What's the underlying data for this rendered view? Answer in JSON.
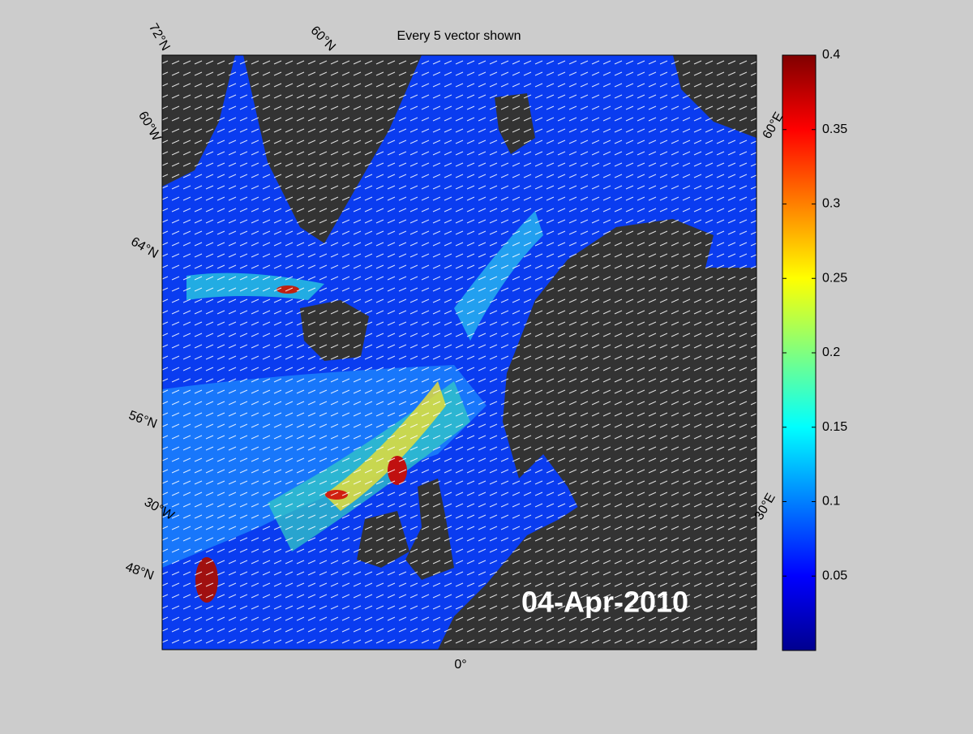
{
  "map": {
    "title": "Every 5 vector shown",
    "date": "04-Apr-2010",
    "graticule_labels": [
      "72°N",
      "60°N",
      "60°W",
      "64°N",
      "56°N",
      "30°W",
      "48°N",
      "0°",
      "60°E",
      "30°E"
    ]
  },
  "colorbar": {
    "clim": [
      0,
      0.4
    ],
    "ticks": [
      0.05,
      0.1,
      0.15,
      0.2,
      0.25,
      0.3,
      0.35,
      0.4
    ],
    "colormap": "jet"
  }
}
